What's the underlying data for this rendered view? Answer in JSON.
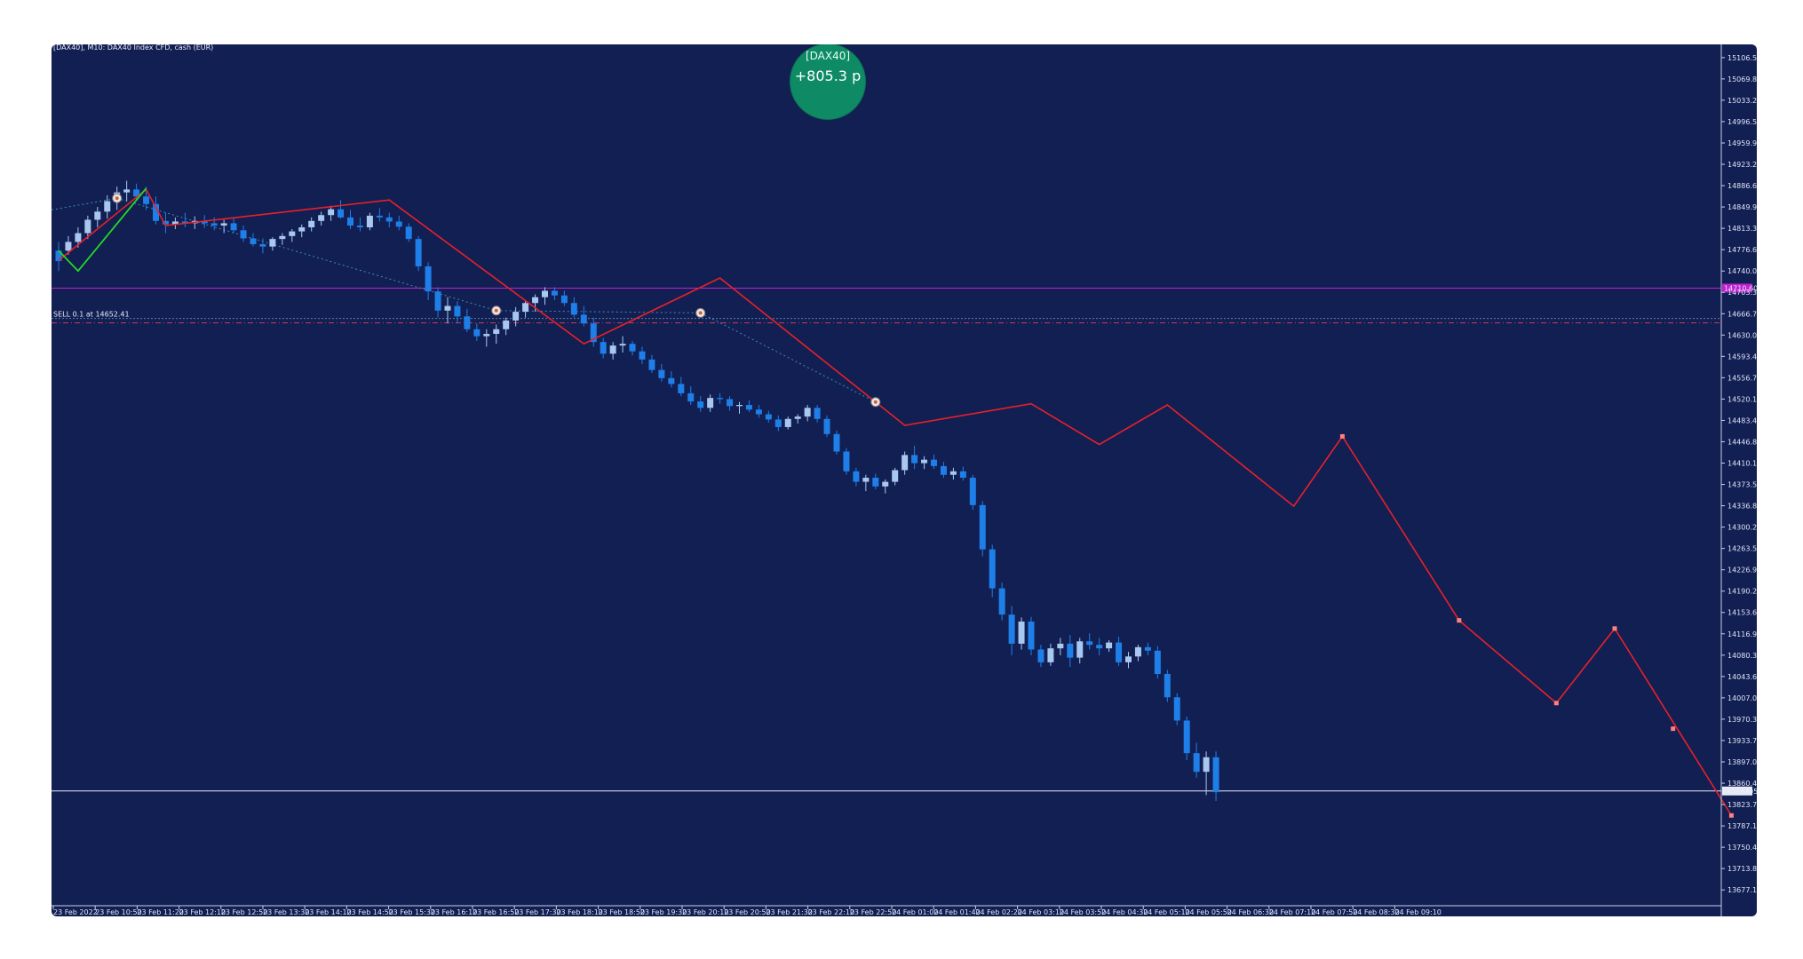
{
  "header": {
    "info": "[DAX40], M10: DAX40 Index CFD, cash (EUR)"
  },
  "badge": {
    "symbol": "[DAX40]",
    "points": "+805.3 p"
  },
  "order_label": "SELL 0.1 at 14652.41",
  "colors": {
    "background": "#121f52",
    "bull": "#a8c8f0",
    "bear": "#1f7fe8",
    "zigzag": "#e8202a",
    "zigzag_start": "#22dd22",
    "magenta_line": "#c020d0",
    "current_line": "#e8ecf8",
    "badge": "#0e8a64"
  },
  "chart_data": {
    "type": "candlestick",
    "symbol": "DAX40",
    "timeframe": "M10",
    "ylim": [
      13650,
      15120
    ],
    "y_ticks": [
      "15106.50",
      "15069.85",
      "15033.20",
      "14996.55",
      "14959.90",
      "14923.25",
      "14886.60",
      "14849.95",
      "14813.30",
      "14776.65",
      "14740.00",
      "14703.35",
      "14666.70",
      "14630.05",
      "14593.40",
      "14556.75",
      "14520.10",
      "14483.45",
      "14446.80",
      "14410.15",
      "14373.50",
      "14336.85",
      "14300.20",
      "14263.55",
      "14226.90",
      "14190.25",
      "14153.60",
      "14116.95",
      "14080.30",
      "14043.65",
      "14007.00",
      "13970.35",
      "13933.70",
      "13897.05",
      "13860.40",
      "13823.75",
      "13787.10",
      "13750.45",
      "13713.80",
      "13677.15"
    ],
    "x_ticks": [
      "23 Feb 2022",
      "23 Feb 10:50",
      "23 Feb 11:20",
      "23 Feb 12:10",
      "23 Feb 12:50",
      "23 Feb 13:30",
      "23 Feb 14:10",
      "23 Feb 14:50",
      "23 Feb 15:30",
      "23 Feb 16:10",
      "23 Feb 16:50",
      "23 Feb 17:30",
      "23 Feb 18:10",
      "23 Feb 18:50",
      "23 Feb 19:30",
      "23 Feb 20:10",
      "23 Feb 20:50",
      "23 Feb 21:30",
      "23 Feb 22:10",
      "23 Feb 22:50",
      "24 Feb 01:00",
      "24 Feb 01:40",
      "24 Feb 02:20",
      "24 Feb 03:10",
      "24 Feb 03:50",
      "24 Feb 04:30",
      "24 Feb 05:10",
      "24 Feb 05:50",
      "24 Feb 06:30",
      "24 Feb 07:10",
      "24 Feb 07:50",
      "24 Feb 08:30",
      "24 Feb 09:10"
    ],
    "magenta_level": 14710.6,
    "magenta_level_label": "14710.60",
    "entry_level": 14652.41,
    "current_price": 13847.05,
    "current_price_label": "13847.05",
    "ohlc": [
      [
        14775,
        14790,
        14740,
        14757
      ],
      [
        14775,
        14800,
        14768,
        14790
      ],
      [
        14790,
        14815,
        14780,
        14805
      ],
      [
        14805,
        14835,
        14795,
        14828
      ],
      [
        14828,
        14850,
        14815,
        14842
      ],
      [
        14842,
        14870,
        14830,
        14860
      ],
      [
        14860,
        14885,
        14845,
        14875
      ],
      [
        14875,
        14895,
        14860,
        14880
      ],
      [
        14880,
        14890,
        14862,
        14868
      ],
      [
        14868,
        14885,
        14845,
        14855
      ],
      [
        14855,
        14868,
        14820,
        14826
      ],
      [
        14826,
        14840,
        14805,
        14820
      ],
      [
        14820,
        14832,
        14812,
        14825
      ],
      [
        14825,
        14840,
        14815,
        14822
      ],
      [
        14822,
        14834,
        14812,
        14826
      ],
      [
        14826,
        14836,
        14814,
        14822
      ],
      [
        14822,
        14832,
        14810,
        14818
      ],
      [
        14818,
        14828,
        14805,
        14822
      ],
      [
        14822,
        14832,
        14805,
        14810
      ],
      [
        14810,
        14818,
        14790,
        14796
      ],
      [
        14796,
        14805,
        14782,
        14786
      ],
      [
        14786,
        14796,
        14770,
        14782
      ],
      [
        14782,
        14798,
        14775,
        14795
      ],
      [
        14795,
        14805,
        14785,
        14800
      ],
      [
        14800,
        14812,
        14790,
        14808
      ],
      [
        14808,
        14820,
        14798,
        14815
      ],
      [
        14815,
        14832,
        14808,
        14826
      ],
      [
        14826,
        14842,
        14818,
        14836
      ],
      [
        14836,
        14852,
        14826,
        14846
      ],
      [
        14846,
        14862,
        14830,
        14832
      ],
      [
        14832,
        14845,
        14812,
        14818
      ],
      [
        14818,
        14832,
        14808,
        14815
      ],
      [
        14815,
        14840,
        14810,
        14835
      ],
      [
        14835,
        14848,
        14825,
        14832
      ],
      [
        14832,
        14840,
        14815,
        14825
      ],
      [
        14825,
        14835,
        14810,
        14816
      ],
      [
        14816,
        14822,
        14790,
        14795
      ],
      [
        14795,
        14800,
        14740,
        14748
      ],
      [
        14748,
        14755,
        14690,
        14705
      ],
      [
        14705,
        14712,
        14660,
        14672
      ],
      [
        14672,
        14695,
        14650,
        14680
      ],
      [
        14680,
        14688,
        14650,
        14662
      ],
      [
        14662,
        14675,
        14635,
        14640
      ],
      [
        14640,
        14650,
        14620,
        14628
      ],
      [
        14628,
        14640,
        14610,
        14632
      ],
      [
        14632,
        14648,
        14615,
        14640
      ],
      [
        14640,
        14660,
        14630,
        14655
      ],
      [
        14655,
        14678,
        14645,
        14670
      ],
      [
        14670,
        14690,
        14660,
        14685
      ],
      [
        14685,
        14700,
        14670,
        14695
      ],
      [
        14695,
        14712,
        14682,
        14706
      ],
      [
        14706,
        14712,
        14690,
        14698
      ],
      [
        14698,
        14706,
        14680,
        14685
      ],
      [
        14685,
        14695,
        14660,
        14665
      ],
      [
        14665,
        14680,
        14645,
        14650
      ],
      [
        14650,
        14660,
        14610,
        14618
      ],
      [
        14618,
        14625,
        14590,
        14598
      ],
      [
        14598,
        14618,
        14588,
        14612
      ],
      [
        14612,
        14628,
        14600,
        14615
      ],
      [
        14615,
        14620,
        14595,
        14602
      ],
      [
        14602,
        14610,
        14580,
        14588
      ],
      [
        14588,
        14596,
        14565,
        14570
      ],
      [
        14570,
        14580,
        14550,
        14556
      ],
      [
        14556,
        14568,
        14540,
        14546
      ],
      [
        14546,
        14558,
        14525,
        14530
      ],
      [
        14530,
        14542,
        14510,
        14516
      ],
      [
        14516,
        14525,
        14498,
        14505
      ],
      [
        14505,
        14528,
        14498,
        14522
      ],
      [
        14522,
        14530,
        14512,
        14520
      ],
      [
        14520,
        14525,
        14500,
        14508
      ],
      [
        14508,
        14515,
        14495,
        14510
      ],
      [
        14510,
        14518,
        14498,
        14502
      ],
      [
        14502,
        14510,
        14488,
        14494
      ],
      [
        14494,
        14500,
        14480,
        14485
      ],
      [
        14485,
        14492,
        14465,
        14472
      ],
      [
        14472,
        14490,
        14468,
        14486
      ],
      [
        14486,
        14494,
        14478,
        14490
      ],
      [
        14490,
        14510,
        14482,
        14505
      ],
      [
        14505,
        14510,
        14480,
        14486
      ],
      [
        14486,
        14492,
        14455,
        14460
      ],
      [
        14460,
        14466,
        14425,
        14430
      ],
      [
        14430,
        14436,
        14390,
        14396
      ],
      [
        14396,
        14402,
        14370,
        14378
      ],
      [
        14378,
        14390,
        14362,
        14385
      ],
      [
        14385,
        14392,
        14365,
        14370
      ],
      [
        14370,
        14382,
        14358,
        14378
      ],
      [
        14378,
        14402,
        14372,
        14398
      ],
      [
        14398,
        14430,
        14390,
        14424
      ],
      [
        14424,
        14440,
        14400,
        14410
      ],
      [
        14410,
        14422,
        14400,
        14416
      ],
      [
        14416,
        14425,
        14400,
        14405
      ],
      [
        14405,
        14412,
        14385,
        14390
      ],
      [
        14390,
        14402,
        14382,
        14396
      ],
      [
        14396,
        14404,
        14380,
        14385
      ],
      [
        14385,
        14390,
        14330,
        14338
      ],
      [
        14338,
        14345,
        14250,
        14262
      ],
      [
        14262,
        14270,
        14180,
        14195
      ],
      [
        14195,
        14205,
        14140,
        14150
      ],
      [
        14150,
        14165,
        14080,
        14100
      ],
      [
        14100,
        14145,
        14090,
        14138
      ],
      [
        14138,
        14146,
        14080,
        14090
      ],
      [
        14090,
        14098,
        14060,
        14068
      ],
      [
        14068,
        14100,
        14062,
        14092
      ],
      [
        14092,
        14110,
        14080,
        14100
      ],
      [
        14100,
        14115,
        14060,
        14076
      ],
      [
        14076,
        14110,
        14066,
        14104
      ],
      [
        14104,
        14118,
        14090,
        14098
      ],
      [
        14098,
        14110,
        14080,
        14092
      ],
      [
        14092,
        14106,
        14086,
        14102
      ],
      [
        14102,
        14112,
        14062,
        14068
      ],
      [
        14068,
        14086,
        14058,
        14078
      ],
      [
        14078,
        14098,
        14070,
        14094
      ],
      [
        14094,
        14102,
        14080,
        14088
      ],
      [
        14088,
        14096,
        14040,
        14048
      ],
      [
        14048,
        14055,
        14000,
        14008
      ],
      [
        14008,
        14015,
        13960,
        13968
      ],
      [
        13968,
        13975,
        13900,
        13912
      ],
      [
        13912,
        13930,
        13870,
        13880
      ],
      [
        13880,
        13915,
        13840,
        13905
      ],
      [
        13905,
        13915,
        13830,
        13845
      ]
    ],
    "zigzag": [
      [
        0,
        14758
      ],
      [
        9,
        14880
      ],
      [
        11,
        14818
      ],
      [
        34,
        14862
      ],
      [
        54,
        14615
      ],
      [
        68,
        14728
      ],
      [
        87,
        14475
      ],
      [
        100,
        14512
      ],
      [
        107,
        14442
      ],
      [
        114,
        14510
      ],
      [
        127,
        14336
      ],
      [
        132,
        14456
      ],
      [
        144,
        14140
      ],
      [
        154,
        13998
      ],
      [
        160,
        14126
      ],
      [
        172,
        13805
      ]
    ],
    "zigzag_green": [
      [
        0,
        14775
      ],
      [
        2,
        14740
      ],
      [
        9,
        14882
      ]
    ],
    "markers": [
      {
        "i": 6,
        "p": 14865
      },
      {
        "i": 45,
        "p": 14672
      },
      {
        "i": 66,
        "p": 14668
      },
      {
        "i": 84,
        "p": 14515
      }
    ]
  }
}
